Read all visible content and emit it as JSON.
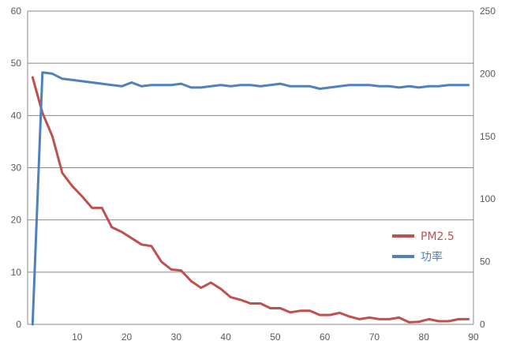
{
  "chart_data": {
    "type": "line",
    "title": "",
    "xlabel": "",
    "ylabel_left": "",
    "ylabel_right": "",
    "x_axis": {
      "min": 0,
      "max": 90,
      "ticks": [
        10,
        20,
        30,
        40,
        50,
        60,
        70,
        80,
        90
      ]
    },
    "y_left": {
      "min": 0,
      "max": 60,
      "ticks": [
        0,
        10,
        20,
        30,
        40,
        50,
        60
      ]
    },
    "y_right": {
      "min": 0,
      "max": 250,
      "ticks": [
        0,
        50,
        100,
        150,
        200,
        250
      ]
    },
    "grid": "horizontal",
    "legend_position": "right",
    "series": [
      {
        "name": "PM2.5",
        "axis": "left",
        "color": "#c0504d",
        "points": [
          [
            1,
            47.3
          ],
          [
            3,
            40.5
          ],
          [
            5,
            36.0
          ],
          [
            7,
            29.0
          ],
          [
            9,
            26.5
          ],
          [
            11,
            24.5
          ],
          [
            13,
            22.3
          ],
          [
            15,
            22.3
          ],
          [
            17,
            18.6
          ],
          [
            19,
            17.7
          ],
          [
            21,
            16.5
          ],
          [
            23,
            15.3
          ],
          [
            25,
            15.0
          ],
          [
            27,
            12.0
          ],
          [
            29,
            10.5
          ],
          [
            31,
            10.3
          ],
          [
            33,
            8.3
          ],
          [
            35,
            7.0
          ],
          [
            37,
            8.0
          ],
          [
            39,
            6.8
          ],
          [
            41,
            5.2
          ],
          [
            43,
            4.7
          ],
          [
            45,
            4.0
          ],
          [
            47,
            4.0
          ],
          [
            49,
            3.1
          ],
          [
            51,
            3.1
          ],
          [
            53,
            2.3
          ],
          [
            55,
            2.6
          ],
          [
            57,
            2.6
          ],
          [
            59,
            1.8
          ],
          [
            61,
            1.8
          ],
          [
            63,
            2.2
          ],
          [
            65,
            1.5
          ],
          [
            67,
            1.0
          ],
          [
            69,
            1.3
          ],
          [
            71,
            1.0
          ],
          [
            73,
            1.0
          ],
          [
            75,
            1.3
          ],
          [
            77,
            0.4
          ],
          [
            79,
            0.5
          ],
          [
            81,
            1.0
          ],
          [
            83,
            0.6
          ],
          [
            85,
            0.6
          ],
          [
            87,
            1.0
          ],
          [
            89,
            1.0
          ]
        ]
      },
      {
        "name": "功率",
        "axis": "right",
        "color": "#4f81bd",
        "points": [
          [
            1,
            0
          ],
          [
            3,
            201
          ],
          [
            5,
            200
          ],
          [
            7,
            196
          ],
          [
            9,
            195
          ],
          [
            11,
            194
          ],
          [
            13,
            193
          ],
          [
            15,
            192
          ],
          [
            17,
            191
          ],
          [
            19,
            190
          ],
          [
            21,
            193
          ],
          [
            23,
            190
          ],
          [
            25,
            191
          ],
          [
            27,
            191
          ],
          [
            29,
            191
          ],
          [
            31,
            192
          ],
          [
            33,
            189
          ],
          [
            35,
            189
          ],
          [
            37,
            190
          ],
          [
            39,
            191
          ],
          [
            41,
            190
          ],
          [
            43,
            191
          ],
          [
            45,
            191
          ],
          [
            47,
            190
          ],
          [
            49,
            191
          ],
          [
            51,
            192
          ],
          [
            53,
            190
          ],
          [
            55,
            190
          ],
          [
            57,
            190
          ],
          [
            59,
            188
          ],
          [
            61,
            189
          ],
          [
            63,
            190
          ],
          [
            65,
            191
          ],
          [
            67,
            191
          ],
          [
            69,
            191
          ],
          [
            71,
            190
          ],
          [
            73,
            190
          ],
          [
            75,
            189
          ],
          [
            77,
            190
          ],
          [
            79,
            189
          ],
          [
            81,
            190
          ],
          [
            83,
            190
          ],
          [
            85,
            191
          ],
          [
            87,
            191
          ],
          [
            89,
            191
          ]
        ]
      }
    ]
  }
}
